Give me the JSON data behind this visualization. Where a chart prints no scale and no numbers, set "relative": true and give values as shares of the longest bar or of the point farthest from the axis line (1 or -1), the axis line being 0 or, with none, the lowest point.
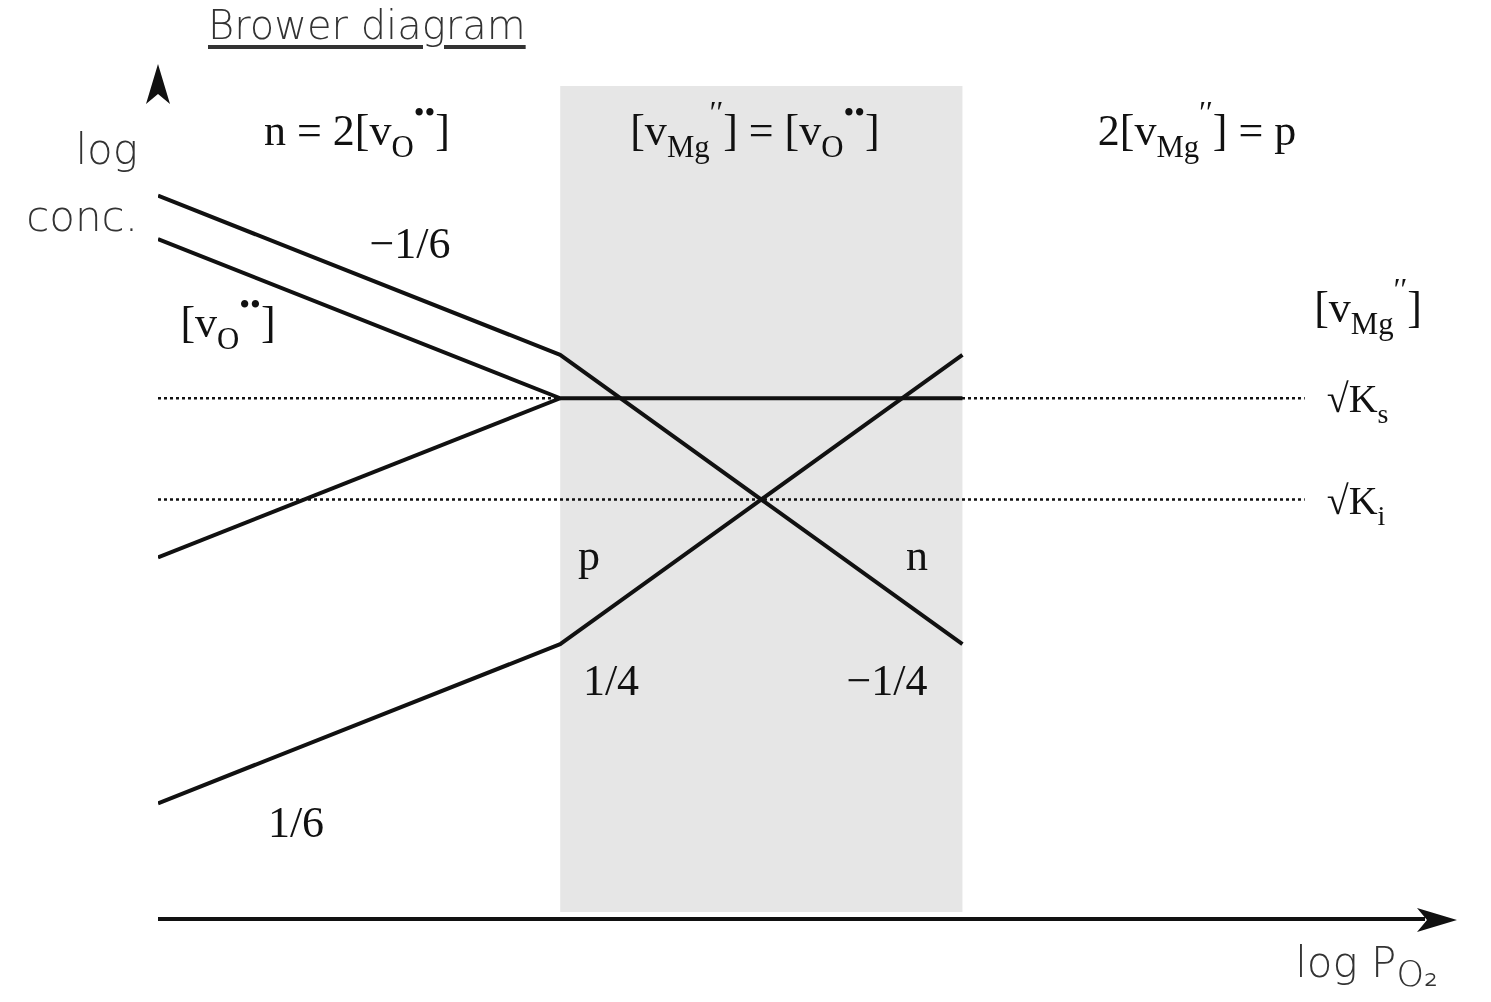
{
  "chart_data": {
    "type": "line",
    "title": "Brower diagram",
    "xlabel": "log P$_{O₂}$",
    "ylabel": "log conc.",
    "relative": true,
    "categories": [
      null,
      null,
      null
    ],
    "marker": "none",
    "line_style": "solid",
    "series": [
      {
        "color": "#111111",
        "values": [
          1,
          0.78,
          0.38
        ]
      },
      {
        "color": "#111111",
        "values": [
          0.94,
          0.72,
          0.72
        ]
      },
      {
        "color": "#111111",
        "values": [
          0.5,
          0.72,
          null
        ]
      },
      {
        "color": "#111111",
        "values": [
          0.16,
          0.38,
          0.78
        ]
      }
    ],
    "ref_lines": [
      {
        "axis": "y",
        "value": 0.72,
        "label": "√K$_{s}$",
        "line_style": "dotted",
        "color": "#111111"
      },
      {
        "axis": "y",
        "value": 0.58,
        "label": "√K$_{i}$",
        "line_style": "dotted",
        "color": "#111111"
      }
    ],
    "annotations": [
      "n = 2[v$_{O}$$^{••}$]",
      "[v$_{Mg}$$^{′′}$] = [v$_{O}$$^{••}$]",
      "2[v$_{Mg}$$^{′′}$] = p",
      "−1/6",
      "[v$_{O}$$^{••}$]",
      "[v$_{Mg}$$^{′′}$]",
      "p",
      "n",
      "1/4",
      "−1/4",
      "1/6"
    ]
  }
}
